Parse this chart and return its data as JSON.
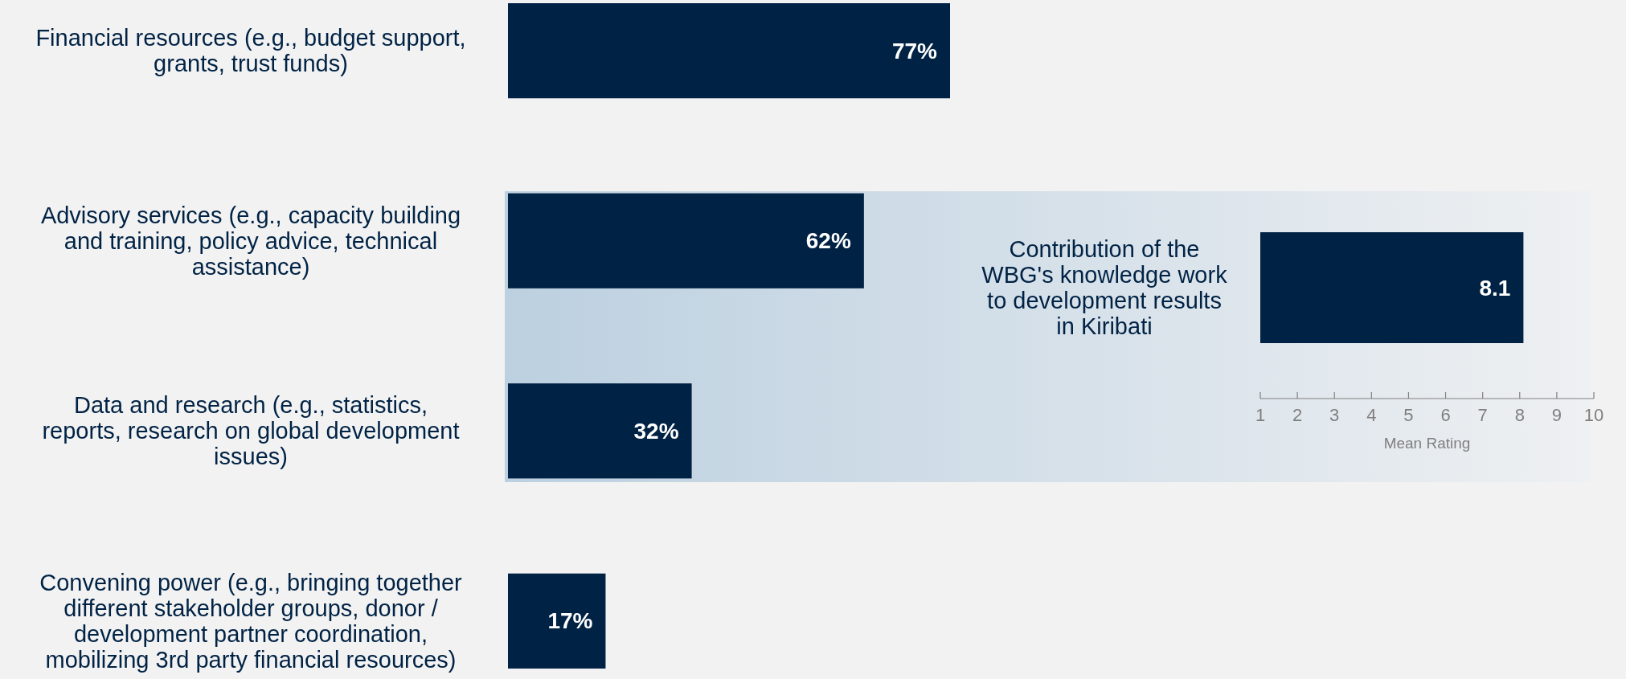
{
  "chart_data": [
    {
      "type": "bar",
      "orientation": "horizontal",
      "categories": [
        "Financial resources (e.g., budget support, grants, trust funds)",
        "Advisory services (e.g., capacity building and training, policy advice, technical assistance)",
        "Data and research (e.g., statistics, reports, research on global development issues)",
        "Convening power (e.g., bringing together different stakeholder groups, donor / development partner coordination, mobilizing 3rd party financial resources)"
      ],
      "values": [
        77,
        62,
        32,
        17
      ],
      "color": "#002244",
      "value_labels": [
        "77%",
        "62%",
        "32%",
        "17%"
      ]
    },
    {
      "type": "bar",
      "orientation": "horizontal",
      "categories": [
        "Contribution of the WBG's knowledge work to development results in Kiribati"
      ],
      "values": [
        8.1
      ],
      "color": "#002244",
      "data_labels": true,
      "xlabel": "Mean Rating",
      "xlim": [
        1,
        10
      ],
      "xticks": [
        1,
        2,
        3,
        4,
        5,
        6,
        7,
        8,
        9,
        10
      ]
    }
  ]
}
